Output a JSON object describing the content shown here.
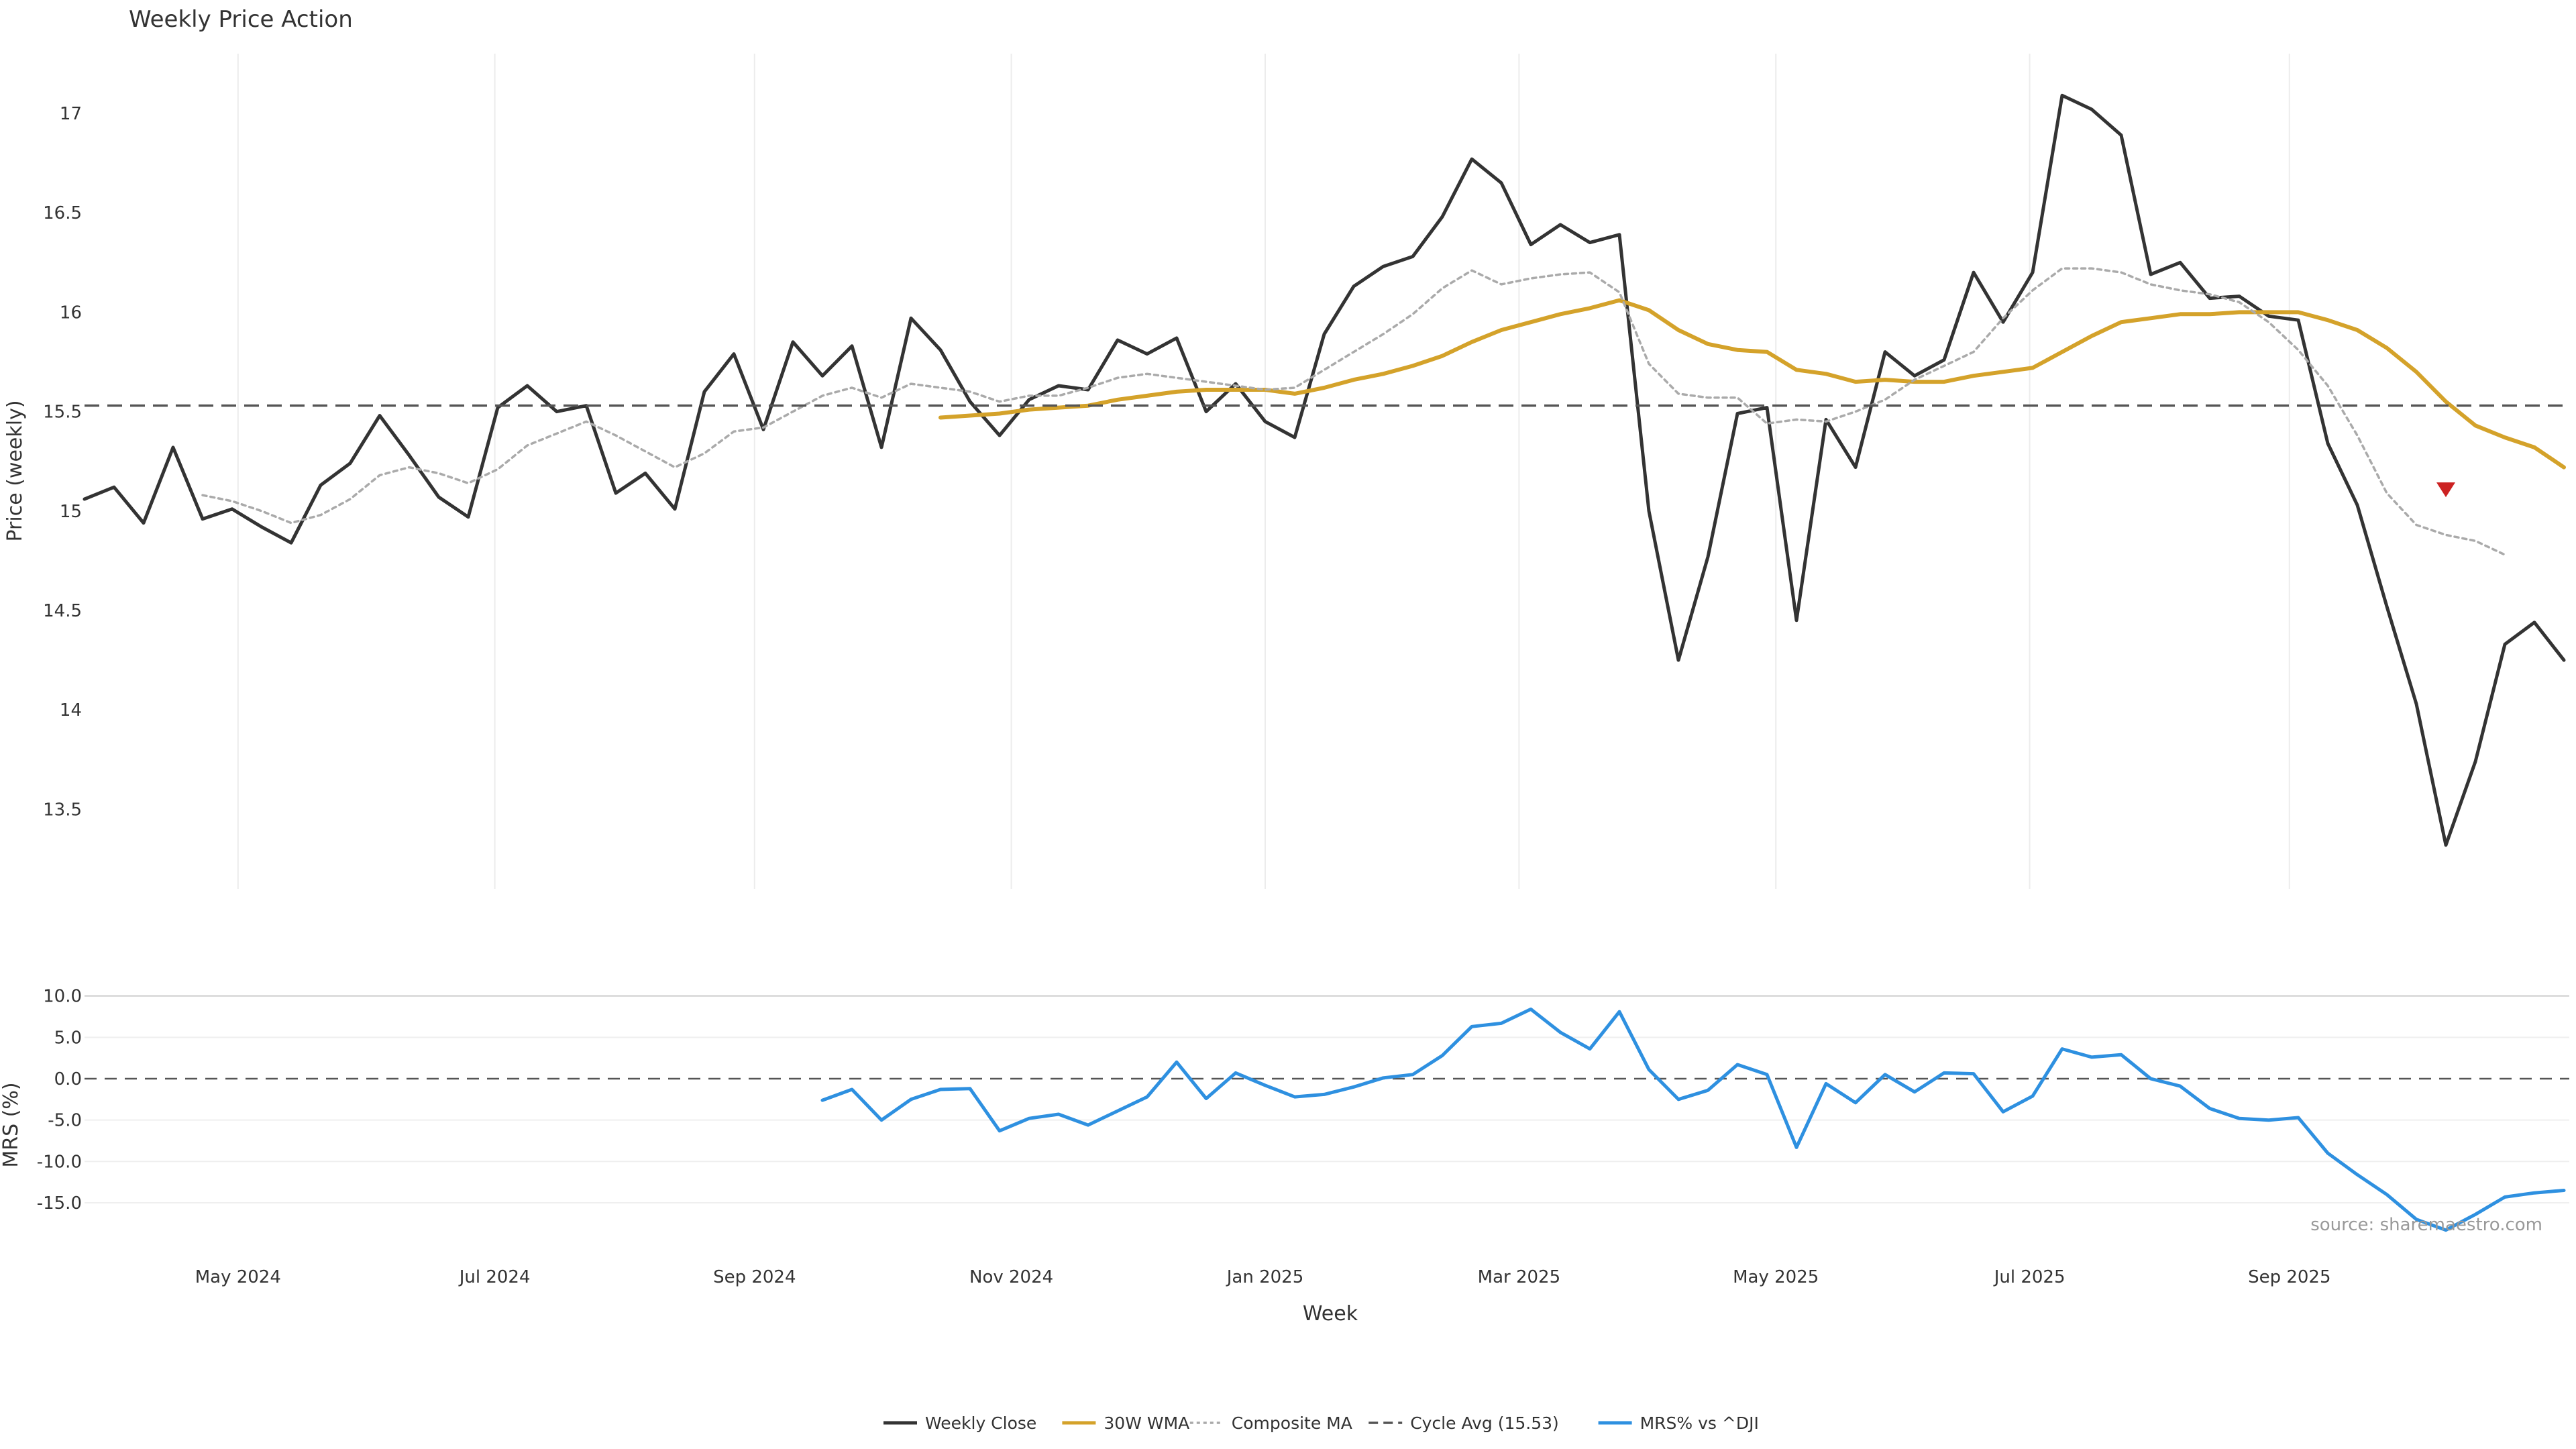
{
  "chart_data": [
    {
      "type": "line",
      "title": "Weekly Price Action",
      "ylabel": "Price (weekly)",
      "ylim": [
        13.1,
        17.3
      ],
      "yticks": [
        "13.5",
        "14",
        "14.5",
        "15",
        "15.5",
        "16",
        "16.5",
        "17"
      ],
      "grid": "x",
      "series": [
        {
          "name": "Weekly Close",
          "key": "close",
          "color": "#333333",
          "style": "solid",
          "start_index": 0,
          "values": [
            15.06,
            15.12,
            14.94,
            15.32,
            14.96,
            15.01,
            14.92,
            14.84,
            15.13,
            15.24,
            15.48,
            15.28,
            15.07,
            14.97,
            15.52,
            15.63,
            15.5,
            15.53,
            15.09,
            15.19,
            15.01,
            15.6,
            15.79,
            15.41,
            15.85,
            15.68,
            15.83,
            15.32,
            15.97,
            15.81,
            15.55,
            15.38,
            15.56,
            15.63,
            15.61,
            15.86,
            15.79,
            15.87,
            15.5,
            15.64,
            15.45,
            15.37,
            15.89,
            16.13,
            16.23,
            16.28,
            16.48,
            16.77,
            16.65,
            16.34,
            16.44,
            16.35,
            16.39,
            15.0,
            14.25,
            14.77,
            15.49,
            15.52,
            14.45,
            15.46,
            15.22,
            15.8,
            15.68,
            15.76,
            16.2,
            15.95,
            16.2,
            17.09,
            17.02,
            16.89,
            16.19,
            16.25,
            16.07,
            16.08,
            15.98,
            15.96,
            15.34,
            15.03,
            14.52,
            14.03,
            13.32,
            13.74,
            14.33,
            14.44,
            14.25
          ]
        },
        {
          "name": "30W WMA",
          "key": "wma",
          "color": "#d4a22a",
          "style": "solid",
          "start_index": 29,
          "values": [
            15.47,
            15.48,
            15.49,
            15.51,
            15.52,
            15.53,
            15.56,
            15.58,
            15.6,
            15.61,
            15.61,
            15.61,
            15.59,
            15.62,
            15.66,
            15.69,
            15.73,
            15.78,
            15.85,
            15.91,
            15.95,
            15.99,
            16.02,
            16.06,
            16.01,
            15.91,
            15.84,
            15.81,
            15.8,
            15.71,
            15.69,
            15.65,
            15.66,
            15.65,
            15.65,
            15.68,
            15.7,
            15.72,
            15.8,
            15.88,
            15.95,
            15.97,
            15.99,
            15.99,
            16.0,
            16.0,
            16.0,
            15.96,
            15.91,
            15.82,
            15.7,
            15.55,
            15.43,
            15.37,
            15.32,
            15.22
          ]
        },
        {
          "name": "Composite MA",
          "key": "composite",
          "color": "#aaaaaa",
          "style": "dotted",
          "start_index": 4,
          "values": [
            15.08,
            15.05,
            15.0,
            14.94,
            14.98,
            15.06,
            15.18,
            15.22,
            15.19,
            15.14,
            15.21,
            15.33,
            15.39,
            15.45,
            15.38,
            15.3,
            15.22,
            15.29,
            15.4,
            15.42,
            15.5,
            15.58,
            15.62,
            15.57,
            15.64,
            15.62,
            15.6,
            15.55,
            15.58,
            15.58,
            15.62,
            15.67,
            15.69,
            15.67,
            15.65,
            15.63,
            15.61,
            15.62,
            15.71,
            15.8,
            15.89,
            15.99,
            16.12,
            16.21,
            16.14,
            16.17,
            16.19,
            16.2,
            16.1,
            15.74,
            15.59,
            15.57,
            15.57,
            15.44,
            15.46,
            15.45,
            15.5,
            15.56,
            15.66,
            15.73,
            15.8,
            15.97,
            16.11,
            16.22,
            16.22,
            16.2,
            16.14,
            16.11,
            16.09,
            16.05,
            15.95,
            15.81,
            15.63,
            15.38,
            15.09,
            14.93,
            14.88,
            14.85,
            14.78
          ]
        },
        {
          "name": "Cycle Avg (15.53)",
          "key": "cycle",
          "color": "#555555",
          "style": "dashed",
          "value": 15.53
        }
      ],
      "marker": {
        "type": "triangle-down",
        "color": "#cc2222",
        "index": 80,
        "value": 15.11
      }
    },
    {
      "type": "line",
      "ylabel": "MRS (%)",
      "xlabel": "Week",
      "ylim": [
        -18,
        12
      ],
      "yticks": [
        "-15.0",
        "-10.0",
        "-5.0",
        "0.0",
        "5.0",
        "10.0"
      ],
      "xtick_labels": [
        "May 2024",
        "Jul 2024",
        "Sep 2024",
        "Nov 2024",
        "Jan 2025",
        "Mar 2025",
        "May 2025",
        "Jul 2025",
        "Sep 2025"
      ],
      "xtick_index": [
        5.2,
        13.9,
        22.7,
        31.4,
        40.0,
        48.6,
        57.3,
        65.9,
        74.7
      ],
      "zero_line": 0,
      "series": [
        {
          "name": "MRS% vs ^DJI",
          "key": "mrs",
          "color": "#2e90e0",
          "style": "solid",
          "start_index": 25,
          "values": [
            -2.6,
            -1.3,
            -5.0,
            -2.5,
            -1.3,
            -1.2,
            -6.3,
            -4.8,
            -4.3,
            -5.6,
            -3.9,
            -2.2,
            2.0,
            -2.4,
            0.7,
            -0.8,
            -2.2,
            -1.9,
            -1.0,
            0.1,
            0.5,
            2.8,
            6.3,
            6.7,
            8.4,
            5.6,
            3.6,
            8.1,
            1.1,
            -2.5,
            -1.4,
            1.7,
            0.5,
            -8.3,
            -0.6,
            -2.9,
            0.5,
            -1.6,
            0.7,
            0.6,
            -4.0,
            -2.1,
            3.6,
            2.6,
            2.9,
            0.0,
            -0.9,
            -3.6,
            -4.8,
            -5.0,
            -4.7,
            -9.0,
            -11.6,
            -14.0,
            -17.0,
            -18.3,
            -16.4,
            -14.3,
            -13.8,
            -13.5
          ]
        }
      ]
    }
  ],
  "source_note": "source: sharemaestro.com",
  "legend": [
    {
      "label": "Weekly Close",
      "color": "#333333",
      "style": "solid"
    },
    {
      "label": "30W WMA",
      "color": "#d4a22a",
      "style": "solid"
    },
    {
      "label": "Composite MA",
      "color": "#aaaaaa",
      "style": "dotted"
    },
    {
      "label": "Cycle Avg (15.53)",
      "color": "#555555",
      "style": "dashed"
    },
    {
      "label": "MRS% vs ^DJI",
      "color": "#2e90e0",
      "style": "solid"
    }
  ],
  "legend_position": "bottom-center"
}
